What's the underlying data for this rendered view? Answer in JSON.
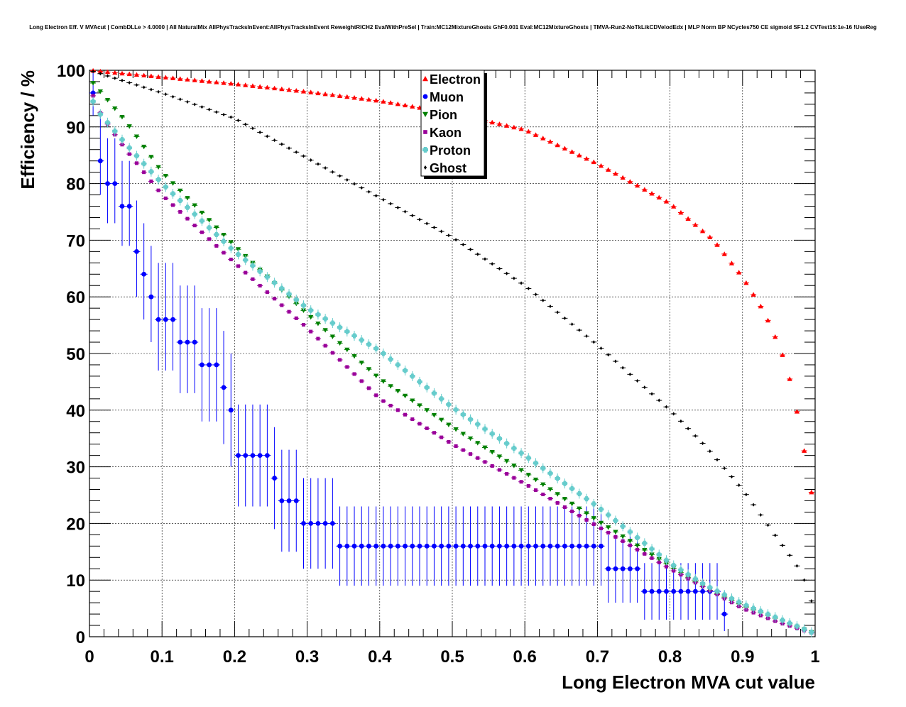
{
  "chart_data": {
    "type": "scatter",
    "title": "Long Electron Eff. V MVAcut | CombDLLe > 4.0000 | All NaturalMix AllPhysTracksInEvent:AllPhysTracksInEvent ReweightRICH2 EvalWithPreSel | Train:MC12MixtureGhosts GhF0.001 Eval:MC12MixtureGhosts | TMVA-Run2-NoTkLikCDVelodEdx | MLP Norm BP NCycles750 CE sigmoid SF1.2 CVTest15:1e-16 !UseReg",
    "xlabel": "Long Electron MVA cut value",
    "ylabel": "Efficiency / %",
    "xlim": [
      0,
      1
    ],
    "ylim": [
      0,
      100
    ],
    "grid": true,
    "legend_position": "top-center",
    "x_ticks": [
      "0",
      "0.1",
      "0.2",
      "0.3",
      "0.4",
      "0.5",
      "0.6",
      "0.7",
      "0.8",
      "0.9",
      "1"
    ],
    "y_ticks": [
      "0",
      "10",
      "20",
      "30",
      "40",
      "50",
      "60",
      "70",
      "80",
      "90",
      "100"
    ],
    "series": [
      {
        "name": "Electron",
        "color": "#ff0000",
        "marker": "triangle-up",
        "points": [
          [
            0,
            100
          ],
          [
            0.1,
            98.8
          ],
          [
            0.2,
            97.6
          ],
          [
            0.3,
            96.2
          ],
          [
            0.4,
            94.6
          ],
          [
            0.5,
            92.4
          ],
          [
            0.6,
            89.5
          ],
          [
            0.7,
            83.5
          ],
          [
            0.8,
            76.5
          ],
          [
            0.86,
            70
          ],
          [
            0.9,
            63.5
          ],
          [
            0.93,
            57.3
          ],
          [
            0.95,
            51.5
          ],
          [
            0.96,
            48
          ],
          [
            0.97,
            43
          ],
          [
            0.98,
            36.5
          ],
          [
            0.995,
            25.5
          ]
        ]
      },
      {
        "name": "Muon",
        "color": "#0000ff",
        "marker": "circle",
        "points": [
          [
            0.005,
            96,
            4,
            4
          ],
          [
            0.015,
            84,
            8,
            6
          ],
          [
            0.025,
            80,
            8,
            7
          ],
          [
            0.035,
            80,
            8,
            7
          ],
          [
            0.045,
            76,
            8,
            7
          ],
          [
            0.055,
            76,
            8,
            7
          ],
          [
            0.065,
            68,
            9,
            8
          ],
          [
            0.075,
            64,
            9,
            8
          ],
          [
            0.085,
            60,
            9,
            8
          ],
          [
            0.095,
            56,
            10,
            9
          ],
          [
            0.105,
            56,
            10,
            9
          ],
          [
            0.115,
            56,
            10,
            9
          ],
          [
            0.125,
            52,
            10,
            9
          ],
          [
            0.135,
            52,
            10,
            9
          ],
          [
            0.145,
            52,
            10,
            9
          ],
          [
            0.155,
            48,
            10,
            10
          ],
          [
            0.165,
            48,
            10,
            10
          ],
          [
            0.175,
            48,
            10,
            10
          ],
          [
            0.185,
            44,
            10,
            10
          ],
          [
            0.195,
            40,
            10,
            10
          ],
          [
            0.205,
            32,
            9,
            9
          ],
          [
            0.215,
            32,
            9,
            9
          ],
          [
            0.225,
            32,
            9,
            9
          ],
          [
            0.235,
            32,
            9,
            9
          ],
          [
            0.245,
            32,
            9,
            9
          ],
          [
            0.255,
            28,
            9,
            9
          ],
          [
            0.265,
            24,
            9,
            9
          ],
          [
            0.275,
            24,
            9,
            9
          ],
          [
            0.285,
            24,
            9,
            9
          ],
          [
            0.295,
            20,
            8,
            8
          ],
          [
            0.305,
            20,
            8,
            8
          ],
          [
            0.315,
            20,
            8,
            8
          ],
          [
            0.325,
            20,
            8,
            8
          ],
          [
            0.335,
            20,
            8,
            8
          ],
          [
            0.345,
            16,
            7,
            7
          ],
          [
            0.355,
            16,
            7,
            7
          ],
          [
            0.365,
            16,
            7,
            7
          ],
          [
            0.375,
            16,
            7,
            7
          ],
          [
            0.385,
            16,
            7,
            7
          ],
          [
            0.395,
            16,
            7,
            7
          ],
          [
            0.405,
            16,
            7,
            7
          ],
          [
            0.415,
            16,
            7,
            7
          ],
          [
            0.425,
            16,
            7,
            7
          ],
          [
            0.435,
            16,
            7,
            7
          ],
          [
            0.445,
            16,
            7,
            7
          ],
          [
            0.455,
            16,
            7,
            7
          ],
          [
            0.465,
            16,
            7,
            7
          ],
          [
            0.475,
            16,
            7,
            7
          ],
          [
            0.485,
            16,
            7,
            7
          ],
          [
            0.495,
            16,
            7,
            7
          ],
          [
            0.505,
            16,
            7,
            7
          ],
          [
            0.515,
            16,
            7,
            7
          ],
          [
            0.525,
            16,
            7,
            7
          ],
          [
            0.535,
            16,
            7,
            7
          ],
          [
            0.545,
            16,
            7,
            7
          ],
          [
            0.555,
            16,
            7,
            7
          ],
          [
            0.565,
            16,
            7,
            7
          ],
          [
            0.575,
            16,
            7,
            7
          ],
          [
            0.585,
            16,
            7,
            7
          ],
          [
            0.595,
            16,
            7,
            7
          ],
          [
            0.605,
            16,
            7,
            7
          ],
          [
            0.615,
            16,
            7,
            7
          ],
          [
            0.625,
            16,
            7,
            7
          ],
          [
            0.635,
            16,
            7,
            7
          ],
          [
            0.645,
            16,
            7,
            7
          ],
          [
            0.655,
            16,
            7,
            7
          ],
          [
            0.665,
            16,
            7,
            7
          ],
          [
            0.675,
            16,
            7,
            7
          ],
          [
            0.685,
            16,
            7,
            7
          ],
          [
            0.695,
            16,
            7,
            7
          ],
          [
            0.705,
            16,
            7,
            7
          ],
          [
            0.715,
            12,
            6,
            6
          ],
          [
            0.725,
            12,
            6,
            6
          ],
          [
            0.735,
            12,
            6,
            6
          ],
          [
            0.745,
            12,
            6,
            6
          ],
          [
            0.755,
            12,
            6,
            6
          ],
          [
            0.765,
            8,
            5,
            5
          ],
          [
            0.775,
            8,
            5,
            5
          ],
          [
            0.785,
            8,
            5,
            5
          ],
          [
            0.795,
            8,
            5,
            5
          ],
          [
            0.805,
            8,
            5,
            5
          ],
          [
            0.815,
            8,
            5,
            5
          ],
          [
            0.825,
            8,
            5,
            5
          ],
          [
            0.835,
            8,
            5,
            5
          ],
          [
            0.845,
            8,
            5,
            5
          ],
          [
            0.855,
            8,
            5,
            5
          ],
          [
            0.865,
            8,
            5,
            5
          ],
          [
            0.875,
            4,
            4,
            3
          ]
        ]
      },
      {
        "name": "Pion",
        "color": "#008000",
        "marker": "triangle-down",
        "points": [
          [
            0,
            98.5
          ],
          [
            0.05,
            91
          ],
          [
            0.1,
            82
          ],
          [
            0.2,
            69
          ],
          [
            0.3,
            57
          ],
          [
            0.4,
            45.5
          ],
          [
            0.5,
            37
          ],
          [
            0.6,
            29
          ],
          [
            0.7,
            20.5
          ],
          [
            0.8,
            12.5
          ],
          [
            0.85,
            8.5
          ],
          [
            0.9,
            5.5
          ],
          [
            0.95,
            3
          ],
          [
            0.995,
            0.8
          ]
        ]
      },
      {
        "name": "Kaon",
        "color": "#990099",
        "marker": "square",
        "points": [
          [
            0,
            97.5
          ],
          [
            0.01,
            93.5
          ],
          [
            0.03,
            89.5
          ],
          [
            0.05,
            86
          ],
          [
            0.1,
            78
          ],
          [
            0.2,
            66
          ],
          [
            0.3,
            54.5
          ],
          [
            0.4,
            42
          ],
          [
            0.5,
            34
          ],
          [
            0.6,
            27
          ],
          [
            0.7,
            19.5
          ],
          [
            0.8,
            12
          ],
          [
            0.85,
            8.5
          ],
          [
            0.9,
            5
          ],
          [
            0.95,
            2.5
          ],
          [
            0.995,
            0.7
          ]
        ]
      },
      {
        "name": "Proton",
        "color": "#66cccc",
        "marker": "cross",
        "points": [
          [
            0,
            96
          ],
          [
            0.01,
            93
          ],
          [
            0.03,
            90
          ],
          [
            0.05,
            87
          ],
          [
            0.1,
            80
          ],
          [
            0.2,
            68
          ],
          [
            0.3,
            58
          ],
          [
            0.4,
            50.5
          ],
          [
            0.5,
            40.5
          ],
          [
            0.6,
            32
          ],
          [
            0.7,
            23
          ],
          [
            0.8,
            13
          ],
          [
            0.85,
            9
          ],
          [
            0.9,
            5.8
          ],
          [
            0.95,
            3.2
          ],
          [
            0.995,
            0.8
          ]
        ]
      },
      {
        "name": "Ghost",
        "color": "#000000",
        "marker": "diamond",
        "points": [
          [
            0,
            100
          ],
          [
            0.1,
            96
          ],
          [
            0.2,
            91.5
          ],
          [
            0.3,
            84.5
          ],
          [
            0.4,
            77.5
          ],
          [
            0.5,
            70.5
          ],
          [
            0.6,
            62
          ],
          [
            0.7,
            51.5
          ],
          [
            0.8,
            40
          ],
          [
            0.85,
            33.5
          ],
          [
            0.9,
            26
          ],
          [
            0.95,
            17
          ],
          [
            0.97,
            13.5
          ],
          [
            0.98,
            11.5
          ],
          [
            0.99,
            8.5
          ],
          [
            0.998,
            5
          ]
        ]
      }
    ]
  }
}
